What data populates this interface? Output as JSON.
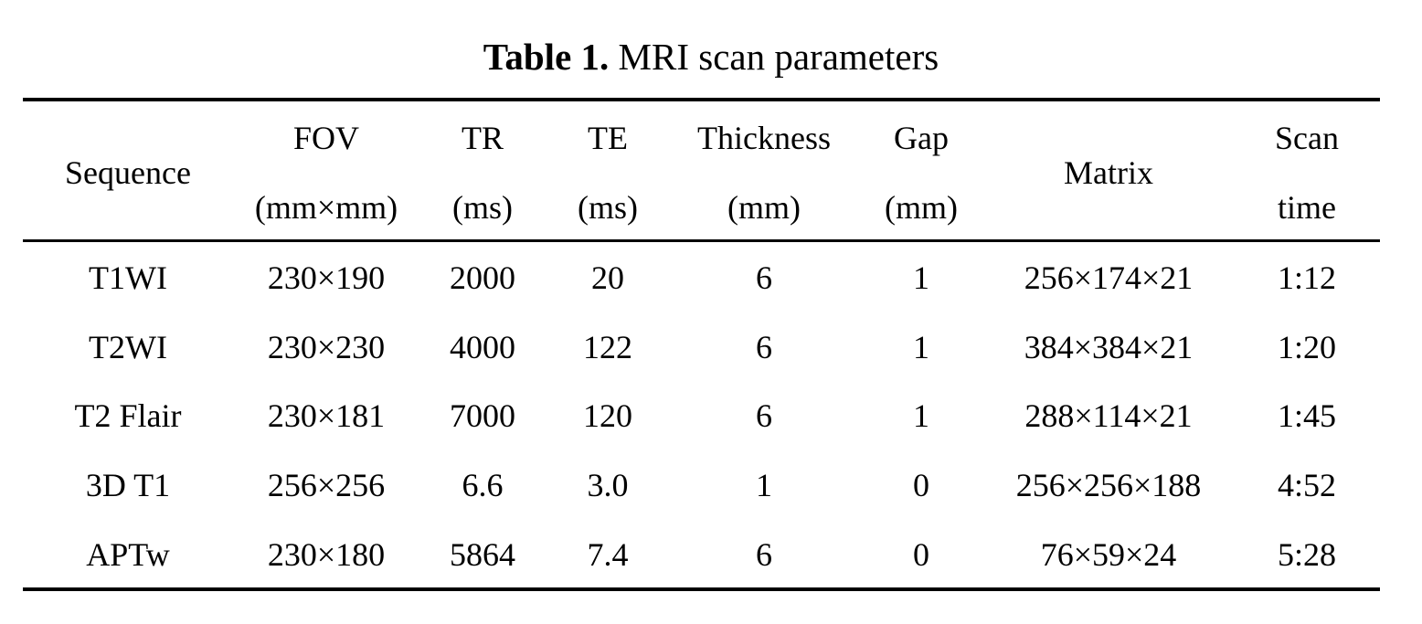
{
  "title": {
    "label": "Table 1.",
    "text": "MRI scan parameters"
  },
  "table": {
    "header": [
      [
        "Sequence"
      ],
      [
        "FOV",
        "(mm×mm)"
      ],
      [
        "TR",
        "(ms)"
      ],
      [
        "TE",
        "(ms)"
      ],
      [
        "Thickness",
        "(mm)"
      ],
      [
        "Gap",
        "(mm)"
      ],
      [
        "Matrix"
      ],
      [
        "Scan",
        "time"
      ]
    ],
    "rows": [
      [
        "T1WI",
        "230×190",
        "2000",
        "20",
        "6",
        "1",
        "256×174×21",
        "1:12"
      ],
      [
        "T2WI",
        "230×230",
        "4000",
        "122",
        "6",
        "1",
        "384×384×21",
        "1:20"
      ],
      [
        "T2 Flair",
        "230×181",
        "7000",
        "120",
        "6",
        "1",
        "288×114×21",
        "1:45"
      ],
      [
        "3D T1",
        "256×256",
        "6.6",
        "3.0",
        "1",
        "0",
        "256×256×188",
        "4:52"
      ],
      [
        "APTw",
        "230×180",
        "5864",
        "7.4",
        "6",
        "0",
        "76×59×24",
        "5:28"
      ]
    ]
  }
}
